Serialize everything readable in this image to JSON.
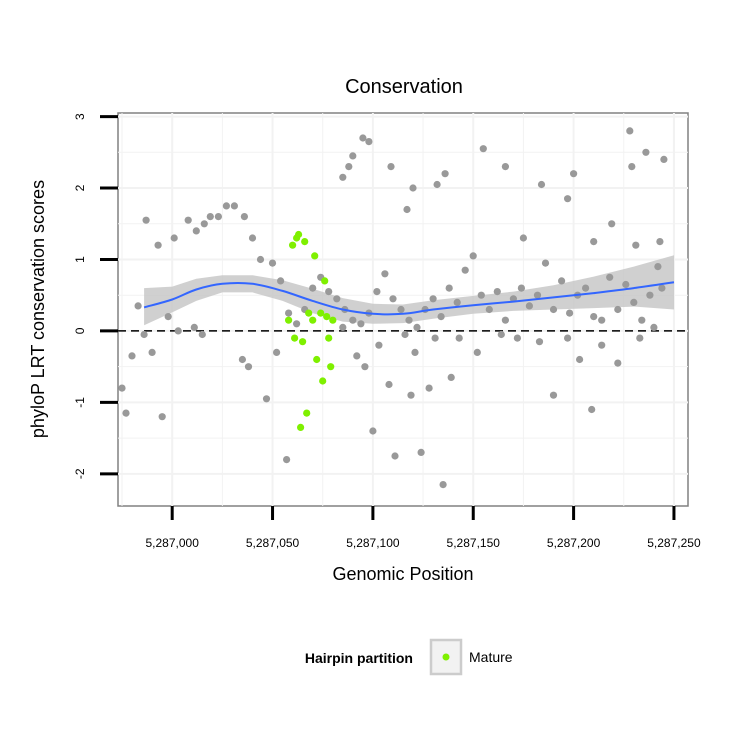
{
  "chart_data": {
    "type": "scatter",
    "title": "Conservation",
    "xlabel": "Genomic Position",
    "ylabel": "phyloP LRT conservation scores",
    "xlim": [
      5286973,
      5287257
    ],
    "ylim": [
      -2.45,
      3.05
    ],
    "x_ticks": [
      5287000,
      5287050,
      5287100,
      5287150,
      5287200,
      5287250
    ],
    "x_tick_labels": [
      "5,287,000",
      "5,287,050",
      "5,287,100",
      "5,287,150",
      "5,287,200",
      "5,287,250"
    ],
    "y_ticks": [
      -2,
      -1,
      0,
      1,
      2,
      3
    ],
    "y_tick_labels": [
      "-2",
      "-1",
      "0",
      "1",
      "2",
      "3"
    ],
    "grid": true,
    "reference_line": {
      "y": 0,
      "style": "dashed"
    },
    "colors": {
      "background_points": "#999999",
      "mature_points": "#7ff000",
      "smooth_line": "#3366ff",
      "confidence_band": "#c8c8c8",
      "grid": "#f2f2f2",
      "panel_border": "#808080"
    },
    "legend": {
      "title": "Hairpin partition",
      "placement": "bottom",
      "entries": [
        {
          "label": "Mature",
          "color": "#7ff000"
        }
      ]
    },
    "series": [
      {
        "role": "background",
        "points": [
          [
            5286987,
            1.55
          ],
          [
            5286993,
            1.2
          ],
          [
            5287001,
            1.3
          ],
          [
            5287008,
            1.55
          ],
          [
            5287012,
            1.4
          ],
          [
            5287016,
            1.5
          ],
          [
            5287019,
            1.6
          ],
          [
            5287023,
            1.6
          ],
          [
            5287027,
            1.75
          ],
          [
            5287031,
            1.75
          ],
          [
            5287036,
            1.6
          ],
          [
            5287040,
            1.3
          ],
          [
            5287044,
            1.0
          ],
          [
            5287050,
            0.95
          ],
          [
            5287054,
            0.7
          ],
          [
            5287058,
            0.25
          ],
          [
            5287062,
            0.1
          ],
          [
            5287066,
            0.3
          ],
          [
            5287070,
            0.6
          ],
          [
            5287074,
            0.75
          ],
          [
            5287078,
            0.55
          ],
          [
            5287082,
            0.45
          ],
          [
            5287086,
            0.3
          ],
          [
            5287090,
            0.15
          ],
          [
            5287094,
            0.1
          ],
          [
            5287098,
            0.25
          ],
          [
            5287102,
            0.55
          ],
          [
            5287106,
            0.8
          ],
          [
            5287110,
            0.45
          ],
          [
            5287114,
            0.3
          ],
          [
            5287118,
            0.15
          ],
          [
            5287122,
            0.05
          ],
          [
            5287126,
            0.3
          ],
          [
            5287130,
            0.45
          ],
          [
            5287134,
            0.2
          ],
          [
            5287138,
            0.6
          ],
          [
            5287142,
            0.4
          ],
          [
            5287146,
            0.85
          ],
          [
            5287150,
            1.05
          ],
          [
            5287154,
            0.5
          ],
          [
            5287158,
            0.3
          ],
          [
            5287162,
            0.55
          ],
          [
            5287166,
            0.15
          ],
          [
            5287170,
            0.45
          ],
          [
            5287174,
            0.6
          ],
          [
            5287178,
            0.35
          ],
          [
            5287182,
            0.5
          ],
          [
            5287186,
            0.95
          ],
          [
            5287190,
            0.3
          ],
          [
            5287194,
            0.7
          ],
          [
            5287198,
            0.25
          ],
          [
            5287202,
            0.5
          ],
          [
            5287206,
            0.6
          ],
          [
            5287210,
            0.2
          ],
          [
            5287214,
            0.15
          ],
          [
            5287218,
            0.75
          ],
          [
            5287222,
            0.3
          ],
          [
            5287226,
            0.65
          ],
          [
            5287230,
            0.4
          ],
          [
            5287234,
            0.15
          ],
          [
            5287238,
            0.5
          ],
          [
            5287242,
            0.9
          ],
          [
            5287244,
            0.6
          ],
          [
            5286975,
            -0.8
          ],
          [
            5286977,
            -1.15
          ],
          [
            5286980,
            -0.35
          ],
          [
            5286983,
            0.35
          ],
          [
            5286986,
            -0.05
          ],
          [
            5286990,
            -0.3
          ],
          [
            5286995,
            -1.2
          ],
          [
            5286998,
            0.2
          ],
          [
            5287003,
            0.0
          ],
          [
            5287011,
            0.05
          ],
          [
            5287015,
            -0.05
          ],
          [
            5287035,
            -0.4
          ],
          [
            5287038,
            -0.5
          ],
          [
            5287047,
            -0.95
          ],
          [
            5287052,
            -0.3
          ],
          [
            5287057,
            -1.8
          ],
          [
            5287085,
            0.05
          ],
          [
            5287092,
            -0.35
          ],
          [
            5287096,
            -0.5
          ],
          [
            5287100,
            -1.4
          ],
          [
            5287103,
            -0.2
          ],
          [
            5287108,
            -0.75
          ],
          [
            5287111,
            -1.75
          ],
          [
            5287116,
            -0.05
          ],
          [
            5287119,
            -0.9
          ],
          [
            5287121,
            -0.3
          ],
          [
            5287124,
            -1.7
          ],
          [
            5287128,
            -0.8
          ],
          [
            5287131,
            -0.1
          ],
          [
            5287135,
            -2.15
          ],
          [
            5287139,
            -0.65
          ],
          [
            5287143,
            -0.1
          ],
          [
            5287152,
            -0.3
          ],
          [
            5287164,
            -0.05
          ],
          [
            5287172,
            -0.1
          ],
          [
            5287183,
            -0.15
          ],
          [
            5287190,
            -0.9
          ],
          [
            5287197,
            -0.1
          ],
          [
            5287203,
            -0.4
          ],
          [
            5287209,
            -1.1
          ],
          [
            5287214,
            -0.2
          ],
          [
            5287222,
            -0.45
          ],
          [
            5287233,
            -0.1
          ],
          [
            5287240,
            0.05
          ],
          [
            5287085,
            2.15
          ],
          [
            5287088,
            2.3
          ],
          [
            5287090,
            2.45
          ],
          [
            5287095,
            2.7
          ],
          [
            5287098,
            2.65
          ],
          [
            5287109,
            2.3
          ],
          [
            5287117,
            1.7
          ],
          [
            5287120,
            2.0
          ],
          [
            5287132,
            2.05
          ],
          [
            5287136,
            2.2
          ],
          [
            5287155,
            2.55
          ],
          [
            5287166,
            2.3
          ],
          [
            5287184,
            2.05
          ],
          [
            5287197,
            1.85
          ],
          [
            5287200,
            2.2
          ],
          [
            5287228,
            2.8
          ],
          [
            5287229,
            2.3
          ],
          [
            5287236,
            2.5
          ],
          [
            5287245,
            2.4
          ],
          [
            5287231,
            1.2
          ],
          [
            5287243,
            1.25
          ],
          [
            5287219,
            1.5
          ],
          [
            5287210,
            1.25
          ],
          [
            5287175,
            1.3
          ]
        ]
      },
      {
        "role": "mature",
        "name": "Mature",
        "points": [
          [
            5287058,
            0.15
          ],
          [
            5287060,
            1.2
          ],
          [
            5287061,
            -0.1
          ],
          [
            5287062,
            1.3
          ],
          [
            5287063,
            1.35
          ],
          [
            5287064,
            -1.35
          ],
          [
            5287065,
            -0.15
          ],
          [
            5287066,
            1.25
          ],
          [
            5287067,
            -1.15
          ],
          [
            5287068,
            0.25
          ],
          [
            5287070,
            0.15
          ],
          [
            5287071,
            1.05
          ],
          [
            5287072,
            -0.4
          ],
          [
            5287074,
            0.25
          ],
          [
            5287075,
            -0.7
          ],
          [
            5287076,
            0.7
          ],
          [
            5287077,
            0.2
          ],
          [
            5287078,
            -0.1
          ],
          [
            5287079,
            -0.5
          ],
          [
            5287080,
            0.15
          ]
        ]
      }
    ],
    "smooth": {
      "x": [
        5286986,
        5287000,
        5287012,
        5287025,
        5287040,
        5287055,
        5287070,
        5287085,
        5287100,
        5287115,
        5287130,
        5287150,
        5287170,
        5287190,
        5287210,
        5287230,
        5287250
      ],
      "y": [
        0.33,
        0.44,
        0.58,
        0.66,
        0.66,
        0.56,
        0.42,
        0.3,
        0.24,
        0.24,
        0.3,
        0.36,
        0.41,
        0.47,
        0.53,
        0.6,
        0.68
      ],
      "lower": [
        0.08,
        0.26,
        0.42,
        0.54,
        0.54,
        0.42,
        0.25,
        0.13,
        0.1,
        0.11,
        0.17,
        0.24,
        0.28,
        0.3,
        0.32,
        0.34,
        0.3
      ],
      "upper": [
        0.6,
        0.62,
        0.73,
        0.78,
        0.78,
        0.71,
        0.59,
        0.46,
        0.38,
        0.37,
        0.43,
        0.49,
        0.55,
        0.64,
        0.76,
        0.9,
        1.06
      ]
    }
  }
}
